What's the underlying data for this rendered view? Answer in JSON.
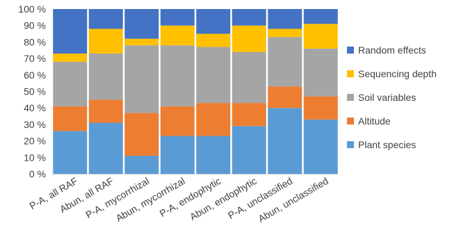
{
  "chart_data": {
    "type": "bar",
    "stacked": true,
    "normalized": true,
    "categories": [
      "P-A, all RAF",
      "Abun, all RAF",
      "P-A, mycorrhizal",
      "Abun, mycorrhizal",
      "P-A, endophytic",
      "Abun, endophytic",
      "P-A, unclassified",
      "Abun, unclassified"
    ],
    "series": [
      {
        "name": "Plant species",
        "color": "#5B9BD5",
        "values": [
          26,
          31,
          11,
          23,
          23,
          29,
          40,
          33
        ]
      },
      {
        "name": "Altitude",
        "color": "#ED7D31",
        "values": [
          15,
          14,
          26,
          18,
          20,
          14,
          13,
          14
        ]
      },
      {
        "name": "Soil variables",
        "color": "#A5A5A5",
        "values": [
          27,
          28,
          41,
          37,
          34,
          31,
          30,
          29
        ]
      },
      {
        "name": "Sequencing depth",
        "color": "#FFC000",
        "values": [
          5,
          15,
          4,
          12,
          8,
          16,
          5,
          15
        ]
      },
      {
        "name": "Random effects",
        "color": "#4472C4",
        "values": [
          27,
          12,
          18,
          10,
          15,
          10,
          12,
          9
        ]
      }
    ],
    "y_ticks": [
      "0 %",
      "10 %",
      "20 %",
      "30 %",
      "40 %",
      "50 %",
      "60 %",
      "70 %",
      "80 %",
      "90 %",
      "100 %"
    ],
    "ylim": [
      0,
      100
    ],
    "grid": false,
    "legend_position": "right",
    "legend_order": [
      "Random effects",
      "Sequencing depth",
      "Soil variables",
      "Altitude",
      "Plant species"
    ]
  }
}
